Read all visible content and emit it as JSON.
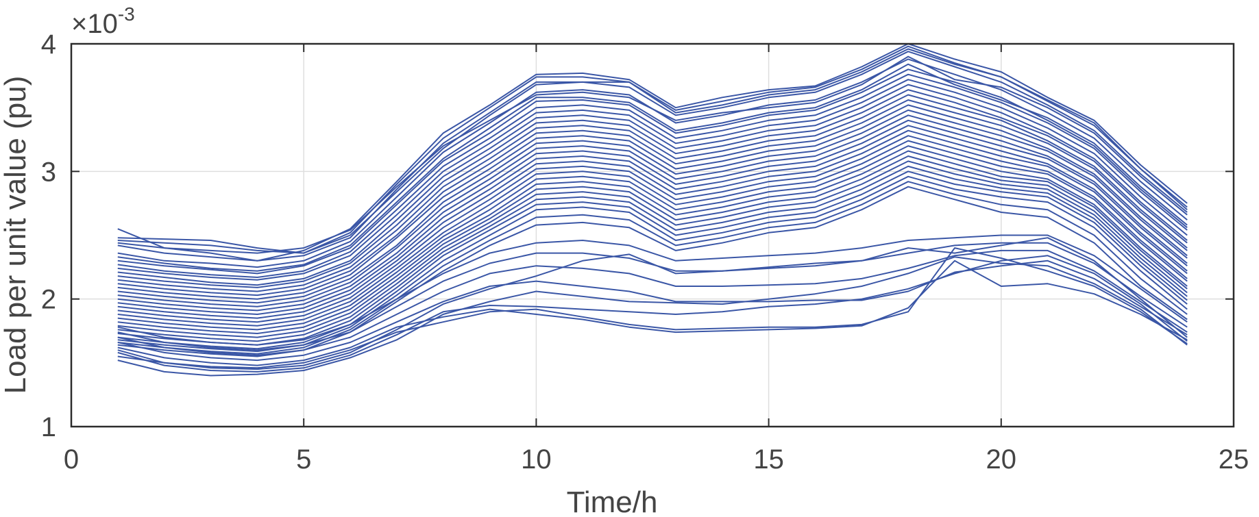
{
  "chart_data": {
    "type": "line",
    "title": "",
    "xlabel": "Time/h",
    "ylabel": "Load per unit value (pu)",
    "exponent_label": "×10",
    "exponent_power": "-3",
    "xlim": [
      0,
      25
    ],
    "ylim": [
      1,
      4
    ],
    "x_ticks": [
      "0",
      "5",
      "10",
      "15",
      "20",
      "25"
    ],
    "y_ticks": [
      "1",
      "2",
      "3",
      "4"
    ],
    "grid": true,
    "series_color": "#3a56a6",
    "x": [
      1,
      2,
      3,
      4,
      5,
      6,
      7,
      8,
      9,
      10,
      11,
      12,
      13,
      14,
      15,
      16,
      17,
      18,
      19,
      20,
      21,
      22,
      23,
      24
    ],
    "series": [
      {
        "values": [
          2.55,
          2.4,
          2.36,
          2.3,
          2.38,
          2.55,
          2.92,
          3.3,
          3.52,
          3.76,
          3.77,
          3.72,
          3.5,
          3.58,
          3.64,
          3.67,
          3.82,
          4.0,
          3.88,
          3.78,
          3.58,
          3.4,
          3.05,
          2.75
        ]
      },
      {
        "values": [
          2.48,
          2.47,
          2.46,
          2.4,
          2.36,
          2.52,
          2.9,
          3.26,
          3.5,
          3.74,
          3.74,
          3.7,
          3.48,
          3.55,
          3.62,
          3.66,
          3.8,
          3.98,
          3.85,
          3.74,
          3.55,
          3.36,
          3.02,
          2.72
        ]
      },
      {
        "values": [
          2.42,
          2.36,
          2.33,
          2.3,
          2.34,
          2.48,
          2.86,
          3.22,
          3.46,
          3.7,
          3.7,
          3.66,
          3.44,
          3.5,
          3.58,
          3.62,
          3.76,
          3.94,
          3.82,
          3.7,
          3.52,
          3.32,
          2.98,
          2.68
        ]
      },
      {
        "values": [
          2.36,
          2.3,
          2.28,
          2.25,
          2.3,
          2.45,
          2.8,
          3.15,
          3.38,
          3.62,
          3.64,
          3.6,
          3.38,
          3.44,
          3.52,
          3.56,
          3.7,
          3.88,
          3.76,
          3.64,
          3.46,
          3.26,
          2.92,
          2.62
        ]
      },
      {
        "values": [
          2.3,
          2.26,
          2.23,
          2.2,
          2.26,
          2.4,
          2.74,
          3.08,
          3.3,
          3.55,
          3.56,
          3.52,
          3.3,
          3.36,
          3.44,
          3.48,
          3.62,
          3.8,
          3.7,
          3.58,
          3.4,
          3.2,
          2.86,
          2.56
        ]
      },
      {
        "values": [
          2.24,
          2.2,
          2.17,
          2.15,
          2.2,
          2.34,
          2.66,
          3.0,
          3.22,
          3.46,
          3.48,
          3.44,
          3.22,
          3.28,
          3.36,
          3.4,
          3.54,
          3.72,
          3.62,
          3.5,
          3.34,
          3.14,
          2.8,
          2.5
        ]
      },
      {
        "values": [
          2.18,
          2.14,
          2.11,
          2.09,
          2.14,
          2.28,
          2.58,
          2.92,
          3.14,
          3.38,
          3.4,
          3.36,
          3.14,
          3.2,
          3.28,
          3.32,
          3.46,
          3.64,
          3.54,
          3.42,
          3.28,
          3.08,
          2.74,
          2.44
        ]
      },
      {
        "values": [
          2.12,
          2.08,
          2.05,
          2.03,
          2.08,
          2.22,
          2.5,
          2.84,
          3.06,
          3.3,
          3.32,
          3.28,
          3.06,
          3.12,
          3.2,
          3.24,
          3.38,
          3.56,
          3.46,
          3.36,
          3.22,
          3.02,
          2.68,
          2.38
        ]
      },
      {
        "values": [
          2.06,
          2.02,
          1.99,
          1.97,
          2.02,
          2.16,
          2.42,
          2.76,
          2.98,
          3.22,
          3.24,
          3.2,
          2.98,
          3.04,
          3.12,
          3.16,
          3.3,
          3.48,
          3.38,
          3.28,
          3.16,
          2.96,
          2.62,
          2.32
        ]
      },
      {
        "values": [
          2.0,
          1.96,
          1.93,
          1.91,
          1.96,
          2.1,
          2.36,
          2.68,
          2.9,
          3.14,
          3.16,
          3.12,
          2.9,
          2.96,
          3.04,
          3.08,
          3.22,
          3.4,
          3.3,
          3.2,
          3.1,
          2.9,
          2.56,
          2.26
        ]
      },
      {
        "values": [
          1.94,
          1.9,
          1.87,
          1.85,
          1.9,
          2.04,
          2.3,
          2.6,
          2.82,
          3.06,
          3.08,
          3.04,
          2.82,
          2.88,
          2.96,
          3.0,
          3.14,
          3.32,
          3.22,
          3.12,
          3.04,
          2.84,
          2.5,
          2.2
        ]
      },
      {
        "values": [
          1.88,
          1.84,
          1.81,
          1.79,
          1.84,
          1.98,
          2.24,
          2.52,
          2.74,
          2.98,
          3.0,
          2.96,
          2.74,
          2.8,
          2.88,
          2.92,
          3.06,
          3.24,
          3.14,
          3.04,
          2.98,
          2.78,
          2.44,
          2.14
        ]
      },
      {
        "values": [
          1.82,
          1.78,
          1.75,
          1.73,
          1.78,
          1.92,
          2.18,
          2.46,
          2.66,
          2.9,
          2.92,
          2.88,
          2.66,
          2.72,
          2.8,
          2.84,
          2.98,
          3.16,
          3.06,
          2.96,
          2.92,
          2.72,
          2.38,
          2.08
        ]
      },
      {
        "values": [
          1.76,
          1.72,
          1.69,
          1.67,
          1.72,
          1.86,
          2.12,
          2.4,
          2.6,
          2.82,
          2.84,
          2.8,
          2.58,
          2.64,
          2.72,
          2.76,
          2.9,
          3.08,
          2.98,
          2.9,
          2.86,
          2.66,
          2.32,
          2.02
        ]
      },
      {
        "values": [
          1.7,
          1.66,
          1.63,
          1.61,
          1.66,
          1.8,
          2.06,
          2.34,
          2.54,
          2.74,
          2.76,
          2.72,
          2.5,
          2.56,
          2.64,
          2.68,
          2.82,
          3.0,
          2.9,
          2.84,
          2.8,
          2.6,
          2.26,
          1.96
        ]
      },
      {
        "values": [
          2.44,
          2.4,
          2.38,
          2.36,
          2.4,
          2.54,
          2.88,
          3.2,
          3.4,
          3.6,
          3.62,
          3.58,
          3.4,
          3.46,
          3.5,
          3.54,
          3.68,
          3.9,
          3.72,
          3.66,
          3.5,
          3.3,
          2.96,
          2.66
        ]
      },
      {
        "values": [
          2.33,
          2.28,
          2.24,
          2.22,
          2.27,
          2.42,
          2.76,
          3.1,
          3.34,
          3.58,
          3.58,
          3.54,
          3.32,
          3.38,
          3.46,
          3.5,
          3.64,
          3.84,
          3.68,
          3.56,
          3.42,
          3.22,
          2.88,
          2.58
        ]
      },
      {
        "values": [
          2.21,
          2.17,
          2.13,
          2.11,
          2.16,
          2.3,
          2.62,
          2.96,
          3.18,
          3.42,
          3.44,
          3.4,
          3.18,
          3.24,
          3.32,
          3.36,
          3.5,
          3.68,
          3.58,
          3.46,
          3.3,
          3.1,
          2.76,
          2.46
        ]
      },
      {
        "values": [
          2.09,
          2.05,
          2.02,
          2.0,
          2.05,
          2.19,
          2.48,
          2.8,
          3.02,
          3.26,
          3.28,
          3.24,
          3.02,
          3.08,
          3.16,
          3.2,
          3.34,
          3.52,
          3.42,
          3.32,
          3.18,
          2.98,
          2.64,
          2.34
        ]
      },
      {
        "values": [
          1.97,
          1.93,
          1.9,
          1.88,
          1.93,
          2.07,
          2.33,
          2.64,
          2.86,
          3.1,
          3.12,
          3.08,
          2.86,
          2.92,
          3.0,
          3.04,
          3.18,
          3.36,
          3.26,
          3.16,
          3.06,
          2.86,
          2.52,
          2.22
        ]
      },
      {
        "values": [
          1.85,
          1.81,
          1.78,
          1.76,
          1.81,
          1.95,
          2.21,
          2.49,
          2.7,
          2.94,
          2.96,
          2.92,
          2.7,
          2.76,
          2.84,
          2.88,
          3.02,
          3.2,
          3.1,
          3.0,
          2.94,
          2.74,
          2.4,
          2.1
        ]
      },
      {
        "values": [
          2.27,
          2.22,
          2.19,
          2.17,
          2.22,
          2.37,
          2.7,
          3.04,
          3.26,
          3.5,
          3.52,
          3.48,
          3.26,
          3.32,
          3.4,
          3.44,
          3.58,
          3.76,
          3.66,
          3.54,
          3.38,
          3.18,
          2.84,
          2.54
        ]
      },
      {
        "values": [
          2.15,
          2.11,
          2.08,
          2.06,
          2.11,
          2.25,
          2.54,
          2.88,
          3.1,
          3.34,
          3.36,
          3.32,
          3.1,
          3.16,
          3.24,
          3.28,
          3.42,
          3.6,
          3.5,
          3.4,
          3.24,
          3.04,
          2.7,
          2.4
        ]
      },
      {
        "values": [
          2.03,
          1.99,
          1.96,
          1.94,
          1.99,
          2.13,
          2.4,
          2.72,
          2.94,
          3.18,
          3.2,
          3.16,
          2.94,
          3.0,
          3.08,
          3.12,
          3.26,
          3.44,
          3.34,
          3.24,
          3.12,
          2.92,
          2.58,
          2.28
        ]
      },
      {
        "values": [
          1.91,
          1.87,
          1.84,
          1.82,
          1.87,
          2.01,
          2.27,
          2.56,
          2.78,
          3.02,
          3.04,
          3.0,
          2.78,
          2.84,
          2.92,
          2.96,
          3.1,
          3.28,
          3.18,
          3.08,
          3.0,
          2.8,
          2.46,
          2.16
        ]
      },
      {
        "values": [
          1.79,
          1.75,
          1.72,
          1.7,
          1.75,
          1.89,
          2.15,
          2.43,
          2.63,
          2.86,
          2.88,
          2.84,
          2.62,
          2.68,
          2.76,
          2.8,
          2.94,
          3.12,
          3.02,
          2.93,
          2.89,
          2.69,
          2.35,
          2.05
        ]
      },
      {
        "values": [
          1.73,
          1.69,
          1.66,
          1.64,
          1.69,
          1.83,
          2.09,
          2.37,
          2.57,
          2.78,
          2.8,
          2.76,
          2.54,
          2.6,
          2.68,
          2.72,
          2.86,
          3.04,
          2.94,
          2.87,
          2.83,
          2.63,
          2.29,
          1.99
        ]
      },
      {
        "values": [
          1.68,
          1.64,
          1.61,
          1.59,
          1.64,
          1.78,
          2.03,
          2.3,
          2.5,
          2.7,
          2.72,
          2.68,
          2.46,
          2.52,
          2.6,
          2.64,
          2.78,
          2.96,
          2.86,
          2.8,
          2.76,
          2.56,
          2.22,
          1.92
        ]
      },
      {
        "values": [
          1.66,
          1.62,
          1.59,
          1.57,
          1.62,
          1.76,
          2.0,
          2.26,
          2.46,
          2.64,
          2.66,
          2.62,
          2.42,
          2.48,
          2.56,
          2.6,
          2.74,
          2.92,
          2.82,
          2.74,
          2.7,
          2.5,
          2.16,
          1.88
        ]
      },
      {
        "values": [
          1.64,
          1.6,
          1.57,
          1.55,
          1.6,
          1.74,
          1.98,
          2.22,
          2.42,
          2.58,
          2.6,
          2.56,
          2.38,
          2.44,
          2.52,
          2.56,
          2.7,
          2.88,
          2.78,
          2.68,
          2.64,
          2.44,
          2.1,
          1.84
        ]
      },
      {
        "values": [
          1.55,
          1.5,
          1.46,
          1.45,
          1.48,
          1.58,
          1.76,
          1.96,
          2.08,
          2.18,
          2.3,
          2.35,
          2.2,
          2.22,
          2.25,
          2.28,
          2.3,
          2.4,
          2.36,
          2.42,
          2.48,
          2.3,
          2.0,
          1.7
        ]
      },
      {
        "values": [
          1.52,
          1.43,
          1.4,
          1.41,
          1.44,
          1.54,
          1.68,
          1.88,
          1.98,
          2.06,
          2.02,
          1.98,
          1.97,
          1.96,
          2.0,
          2.04,
          2.1,
          2.2,
          2.33,
          2.28,
          2.26,
          2.12,
          1.92,
          1.64
        ]
      },
      {
        "values": [
          1.58,
          1.48,
          1.44,
          1.43,
          1.46,
          1.56,
          1.72,
          1.9,
          1.95,
          1.94,
          1.92,
          1.9,
          1.88,
          1.9,
          1.94,
          1.96,
          2.0,
          2.08,
          2.2,
          2.3,
          2.34,
          2.2,
          1.96,
          1.67
        ]
      },
      {
        "values": [
          1.6,
          1.5,
          1.47,
          1.46,
          1.5,
          1.6,
          1.74,
          1.82,
          1.9,
          1.92,
          1.86,
          1.8,
          1.76,
          1.77,
          1.78,
          1.78,
          1.8,
          1.9,
          2.4,
          2.32,
          2.22,
          2.1,
          1.9,
          1.65
        ]
      },
      {
        "values": [
          1.62,
          1.54,
          1.5,
          1.48,
          1.52,
          1.62,
          1.78,
          1.86,
          1.92,
          1.88,
          1.84,
          1.78,
          1.74,
          1.75,
          1.76,
          1.77,
          1.79,
          1.93,
          2.3,
          2.1,
          2.12,
          2.04,
          1.88,
          1.68
        ]
      },
      {
        "values": [
          1.66,
          1.58,
          1.54,
          1.52,
          1.56,
          1.66,
          1.82,
          1.98,
          2.1,
          2.14,
          2.1,
          2.06,
          1.98,
          1.98,
          1.98,
          1.99,
          1.99,
          2.06,
          2.21,
          2.26,
          2.3,
          2.16,
          1.94,
          1.72
        ]
      },
      {
        "values": [
          1.7,
          1.62,
          1.58,
          1.56,
          1.6,
          1.7,
          1.88,
          2.06,
          2.2,
          2.26,
          2.24,
          2.2,
          2.1,
          2.1,
          2.11,
          2.12,
          2.16,
          2.24,
          2.34,
          2.38,
          2.38,
          2.22,
          1.98,
          1.74
        ]
      },
      {
        "values": [
          1.74,
          1.66,
          1.62,
          1.6,
          1.64,
          1.74,
          1.94,
          2.14,
          2.28,
          2.36,
          2.36,
          2.32,
          2.22,
          2.22,
          2.24,
          2.26,
          2.3,
          2.36,
          2.42,
          2.44,
          2.44,
          2.28,
          2.02,
          1.78
        ]
      },
      {
        "values": [
          1.78,
          1.7,
          1.66,
          1.64,
          1.68,
          1.8,
          2.0,
          2.2,
          2.36,
          2.44,
          2.46,
          2.42,
          2.3,
          2.32,
          2.34,
          2.36,
          2.4,
          2.46,
          2.48,
          2.5,
          2.5,
          2.34,
          2.08,
          1.82
        ]
      },
      {
        "values": [
          2.46,
          2.44,
          2.42,
          2.38,
          2.36,
          2.5,
          2.84,
          3.18,
          3.44,
          3.68,
          3.7,
          3.7,
          3.46,
          3.52,
          3.6,
          3.64,
          3.78,
          3.96,
          3.84,
          3.74,
          3.56,
          3.38,
          3.02,
          2.7
        ]
      }
    ]
  }
}
